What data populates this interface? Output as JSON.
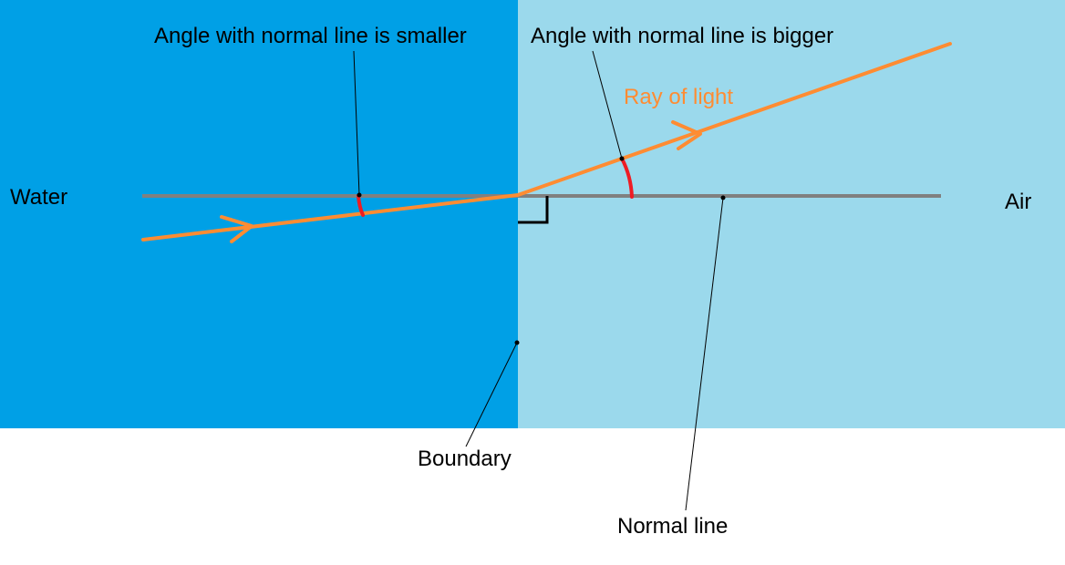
{
  "labels": {
    "water": "Water",
    "air": "Air",
    "angle_smaller": "Angle with normal line is smaller",
    "angle_bigger": "Angle with normal line is bigger",
    "ray_of_light": "Ray of light",
    "boundary": "Boundary",
    "normal_line": "Normal line"
  },
  "colors": {
    "water": "#00a0e6",
    "air": "#9bd9ec",
    "normal_line": "#808080",
    "ray": "#ff8c32",
    "angle_arc": "#ee1c24",
    "pointer": "#000000",
    "background": "#ffffff"
  }
}
